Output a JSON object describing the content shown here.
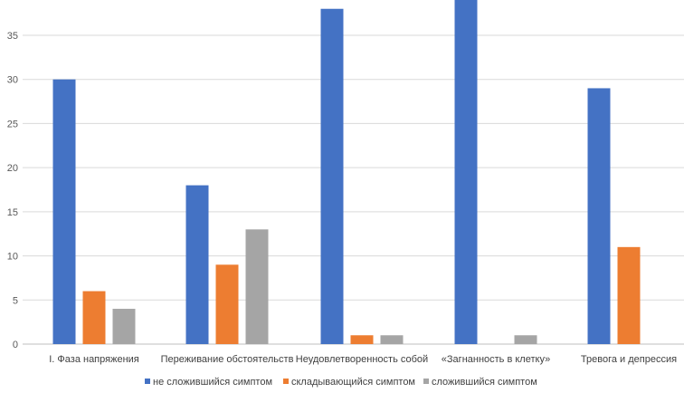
{
  "chart_data": {
    "type": "bar",
    "title": "",
    "xlabel": "",
    "ylabel": "",
    "ylim": [
      0,
      39
    ],
    "yticks": [
      0,
      5,
      10,
      15,
      20,
      25,
      30,
      35
    ],
    "grid": true,
    "legend_position": "bottom",
    "categories": [
      "I. Фаза напряжения",
      "Переживание обстоятельств",
      "Неудовлетворенность собой",
      "«Загнанность в клетку»",
      "Тревога и депрессия"
    ],
    "series": [
      {
        "name": "не сложившийся симптом",
        "color": "#4472C4",
        "values": [
          30,
          18,
          38,
          39,
          29
        ]
      },
      {
        "name": "складывающийся симптом",
        "color": "#ED7D31",
        "values": [
          6,
          9,
          1,
          0,
          11
        ]
      },
      {
        "name": "сложившийся симптом",
        "color": "#A5A5A5",
        "values": [
          4,
          13,
          1,
          1,
          0
        ]
      }
    ]
  }
}
